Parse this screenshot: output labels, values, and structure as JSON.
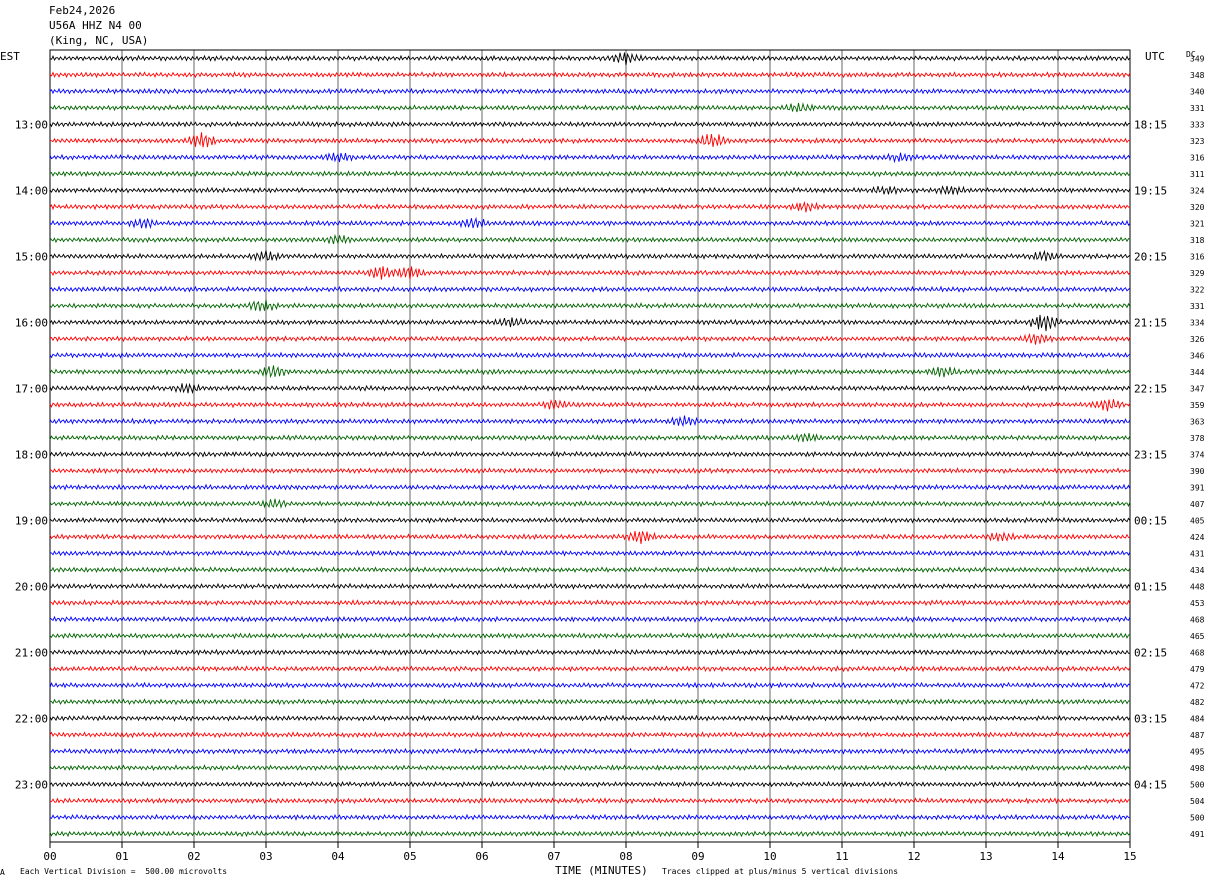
{
  "header": {
    "date": "Feb24,2026",
    "station": "U56A HHZ N4 00",
    "location": "(King, NC, USA)"
  },
  "left_zone": "EST",
  "right_zone": "UTC",
  "dc_label": "DC",
  "footer": {
    "scale": "Each Vertical Division =  500.00 microvolts",
    "clip": "Traces clipped at plus/minus 5 vertical divisions",
    "corner_mark": "A"
  },
  "chart_data": {
    "type": "line",
    "title": "",
    "xlabel": "TIME (MINUTES)",
    "x_ticks": [
      "00",
      "01",
      "02",
      "03",
      "04",
      "05",
      "06",
      "07",
      "08",
      "09",
      "10",
      "11",
      "12",
      "13",
      "14",
      "15"
    ],
    "xlim": [
      0,
      15
    ],
    "left_hour_labels": [
      "13:00",
      "14:00",
      "15:00",
      "16:00",
      "17:00",
      "18:00",
      "19:00",
      "20:00",
      "21:00",
      "22:00",
      "23:00"
    ],
    "right_hour_labels": [
      "18:15",
      "19:15",
      "20:15",
      "21:15",
      "22:15",
      "23:15",
      "00:15",
      "01:15",
      "02:15",
      "03:15",
      "04:15"
    ],
    "hour_label_first_row": 4,
    "rows_per_hour": 4,
    "trace_colors": [
      "#000000",
      "#ff0000",
      "#0000ff",
      "#006400"
    ],
    "dc_values": [
      "349",
      "348",
      "340",
      "331",
      "333",
      "323",
      "316",
      "311",
      "324",
      "320",
      "321",
      "318",
      "316",
      "329",
      "322",
      "331",
      "334",
      "326",
      "346",
      "344",
      "347",
      "359",
      "363",
      "378",
      "374",
      "390",
      "391",
      "407",
      "405",
      "424",
      "431",
      "434",
      "448",
      "453",
      "468",
      "465",
      "468",
      "479",
      "472",
      "482",
      "484",
      "487",
      "495",
      "498",
      "500",
      "504",
      "500",
      "491"
    ],
    "events": [
      {
        "row": 0,
        "minute": 8.0,
        "amp": 2.3
      },
      {
        "row": 3,
        "minute": 10.4,
        "amp": 1.5
      },
      {
        "row": 5,
        "minute": 2.1,
        "amp": 3.0
      },
      {
        "row": 5,
        "minute": 9.2,
        "amp": 3.0
      },
      {
        "row": 6,
        "minute": 4.0,
        "amp": 1.6
      },
      {
        "row": 6,
        "minute": 11.8,
        "amp": 1.4
      },
      {
        "row": 8,
        "minute": 11.6,
        "amp": 1.4
      },
      {
        "row": 8,
        "minute": 12.5,
        "amp": 1.4
      },
      {
        "row": 9,
        "minute": 10.5,
        "amp": 1.5
      },
      {
        "row": 10,
        "minute": 1.3,
        "amp": 1.8
      },
      {
        "row": 10,
        "minute": 5.9,
        "amp": 1.9
      },
      {
        "row": 11,
        "minute": 4.0,
        "amp": 1.5
      },
      {
        "row": 12,
        "minute": 3.0,
        "amp": 2.0
      },
      {
        "row": 12,
        "minute": 13.8,
        "amp": 1.8
      },
      {
        "row": 13,
        "minute": 4.6,
        "amp": 2.5
      },
      {
        "row": 13,
        "minute": 5.0,
        "amp": 2.4
      },
      {
        "row": 15,
        "minute": 2.95,
        "amp": 2.2
      },
      {
        "row": 16,
        "minute": 6.4,
        "amp": 1.6
      },
      {
        "row": 16,
        "minute": 13.8,
        "amp": 3.5
      },
      {
        "row": 17,
        "minute": 13.7,
        "amp": 2.0
      },
      {
        "row": 19,
        "minute": 3.1,
        "amp": 2.2
      },
      {
        "row": 19,
        "minute": 12.4,
        "amp": 1.8
      },
      {
        "row": 20,
        "minute": 1.9,
        "amp": 1.6
      },
      {
        "row": 21,
        "minute": 7.0,
        "amp": 1.5
      },
      {
        "row": 21,
        "minute": 14.7,
        "amp": 2.2
      },
      {
        "row": 22,
        "minute": 8.8,
        "amp": 1.7
      },
      {
        "row": 23,
        "minute": 10.5,
        "amp": 1.4
      },
      {
        "row": 27,
        "minute": 3.1,
        "amp": 1.4
      },
      {
        "row": 29,
        "minute": 8.2,
        "amp": 2.4
      },
      {
        "row": 29,
        "minute": 13.2,
        "amp": 1.5
      }
    ]
  }
}
